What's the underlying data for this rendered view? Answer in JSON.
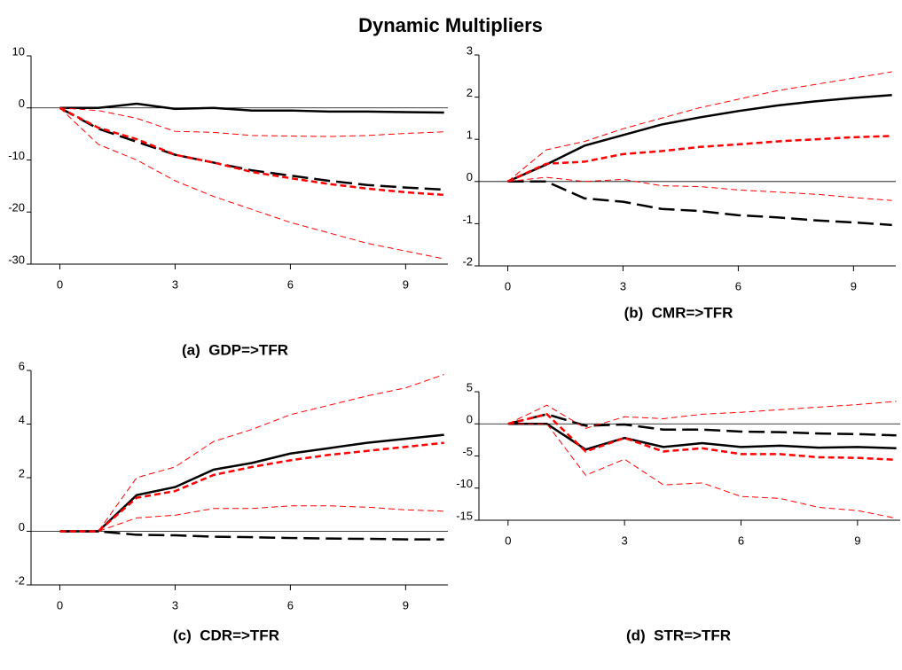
{
  "title": "Dynamic Multipliers",
  "chart_data": [
    {
      "type": "line",
      "subtitle": "(a)  GDP=>TFR",
      "x": [
        0,
        1,
        2,
        3,
        4,
        5,
        6,
        7,
        8,
        9,
        10
      ],
      "xlim": [
        -0.75,
        10.1
      ],
      "xticks": [
        0,
        3,
        6,
        9
      ],
      "ylim": [
        -30,
        10
      ],
      "yticks": [
        -30,
        -20,
        -10,
        0,
        10
      ],
      "zero_line": true,
      "series": [
        {
          "color": "#000000",
          "dash": "solid",
          "width": 2.5,
          "values": [
            0,
            0,
            0.8,
            -0.2,
            0,
            -0.5,
            -0.5,
            -0.7,
            -0.7,
            -0.8,
            -0.9
          ]
        },
        {
          "color": "#000000",
          "dash": "long-dash",
          "width": 2.5,
          "values": [
            0,
            -4,
            -6.5,
            -9,
            -10.5,
            -12,
            -13,
            -14,
            -14.8,
            -15.3,
            -15.7
          ]
        },
        {
          "color": "#ff0000",
          "dash": "dash",
          "width": 2.5,
          "values": [
            0,
            -3.8,
            -6,
            -9,
            -10.5,
            -12.3,
            -13.5,
            -14.6,
            -15.5,
            -16.2,
            -16.7
          ]
        },
        {
          "color": "#ff0000",
          "dash": "dash",
          "width": 1,
          "values": [
            0,
            -0.5,
            -2,
            -4.5,
            -4.7,
            -5.3,
            -5.4,
            -5.5,
            -5.3,
            -4.9,
            -4.6
          ]
        },
        {
          "color": "#ff0000",
          "dash": "dash",
          "width": 1,
          "values": [
            0,
            -7,
            -10,
            -14,
            -17,
            -19.5,
            -22,
            -24,
            -26,
            -27.5,
            -29
          ]
        }
      ]
    },
    {
      "type": "line",
      "subtitle": "(b)  CMR=>TFR",
      "x": [
        0,
        1,
        2,
        3,
        4,
        5,
        6,
        7,
        8,
        9,
        10
      ],
      "xlim": [
        -0.75,
        10.1
      ],
      "xticks": [
        0,
        3,
        6,
        9
      ],
      "ylim": [
        -2,
        3
      ],
      "yticks": [
        -2,
        -1,
        0,
        1,
        2,
        3
      ],
      "zero_line": true,
      "series": [
        {
          "color": "#000000",
          "dash": "solid",
          "width": 2.5,
          "values": [
            0,
            0.4,
            0.85,
            1.1,
            1.35,
            1.52,
            1.67,
            1.8,
            1.9,
            1.98,
            2.05
          ]
        },
        {
          "color": "#000000",
          "dash": "long-dash",
          "width": 2.5,
          "values": [
            0,
            0,
            -0.4,
            -0.48,
            -0.65,
            -0.7,
            -0.8,
            -0.85,
            -0.92,
            -0.97,
            -1.03
          ]
        },
        {
          "color": "#ff0000",
          "dash": "dash",
          "width": 2.5,
          "values": [
            0,
            0.42,
            0.47,
            0.65,
            0.72,
            0.82,
            0.88,
            0.95,
            1.0,
            1.05,
            1.08
          ]
        },
        {
          "color": "#ff0000",
          "dash": "dash",
          "width": 1,
          "values": [
            0,
            0.75,
            0.95,
            1.25,
            1.5,
            1.75,
            1.95,
            2.15,
            2.3,
            2.45,
            2.6
          ]
        },
        {
          "color": "#ff0000",
          "dash": "dash",
          "width": 1,
          "values": [
            0,
            0.1,
            0,
            0.05,
            -0.1,
            -0.12,
            -0.2,
            -0.25,
            -0.3,
            -0.38,
            -0.45
          ]
        }
      ]
    },
    {
      "type": "line",
      "subtitle": "(c)  CDR=>TFR",
      "x": [
        0,
        1,
        2,
        3,
        4,
        5,
        6,
        7,
        8,
        9,
        10
      ],
      "xlim": [
        -0.75,
        10.1
      ],
      "xticks": [
        0,
        3,
        6,
        9
      ],
      "ylim": [
        -2,
        6
      ],
      "yticks": [
        -2,
        0,
        2,
        4,
        6
      ],
      "zero_line": true,
      "series": [
        {
          "color": "#000000",
          "dash": "solid",
          "width": 2.5,
          "values": [
            0,
            0,
            1.35,
            1.65,
            2.3,
            2.55,
            2.9,
            3.1,
            3.3,
            3.45,
            3.6
          ]
        },
        {
          "color": "#000000",
          "dash": "long-dash",
          "width": 2.5,
          "values": [
            0,
            0,
            -0.13,
            -0.15,
            -0.2,
            -0.22,
            -0.25,
            -0.27,
            -0.28,
            -0.3,
            -0.3
          ]
        },
        {
          "color": "#ff0000",
          "dash": "dash",
          "width": 2.5,
          "values": [
            0,
            0,
            1.25,
            1.5,
            2.1,
            2.4,
            2.65,
            2.85,
            3.0,
            3.15,
            3.3
          ]
        },
        {
          "color": "#ff0000",
          "dash": "dash",
          "width": 1,
          "values": [
            0,
            0,
            2.0,
            2.4,
            3.35,
            3.8,
            4.35,
            4.7,
            5.05,
            5.35,
            5.85
          ]
        },
        {
          "color": "#ff0000",
          "dash": "dash",
          "width": 1,
          "values": [
            0,
            0,
            0.5,
            0.6,
            0.85,
            0.85,
            0.95,
            0.95,
            0.9,
            0.8,
            0.75
          ]
        }
      ]
    },
    {
      "type": "line",
      "subtitle": "(d)  STR=>TFR",
      "x": [
        0,
        1,
        2,
        3,
        4,
        5,
        6,
        7,
        8,
        9,
        10
      ],
      "xlim": [
        -0.75,
        10.1
      ],
      "xticks": [
        0,
        3,
        6,
        9
      ],
      "ylim": [
        -15,
        5
      ],
      "yticks": [
        -15,
        -10,
        -5,
        0,
        5
      ],
      "zero_line": true,
      "series": [
        {
          "color": "#000000",
          "dash": "solid",
          "width": 2.5,
          "values": [
            0,
            0,
            -4,
            -2.2,
            -3.6,
            -3,
            -3.6,
            -3.4,
            -3.7,
            -3.6,
            -3.8
          ]
        },
        {
          "color": "#000000",
          "dash": "long-dash",
          "width": 2.5,
          "values": [
            0,
            1.5,
            -0.3,
            -0.1,
            -0.9,
            -0.9,
            -1.2,
            -1.3,
            -1.5,
            -1.6,
            -1.8
          ]
        },
        {
          "color": "#ff0000",
          "dash": "dash",
          "width": 2.5,
          "values": [
            0,
            1.5,
            -4.3,
            -2.2,
            -4.3,
            -3.8,
            -4.7,
            -4.7,
            -5.2,
            -5.3,
            -5.6
          ]
        },
        {
          "color": "#ff0000",
          "dash": "dash",
          "width": 1,
          "values": [
            0,
            2.9,
            -0.7,
            1.1,
            0.8,
            1.5,
            1.8,
            2.2,
            2.6,
            3.0,
            3.5
          ]
        },
        {
          "color": "#ff0000",
          "dash": "dash",
          "width": 1,
          "values": [
            0,
            0,
            -8,
            -5.5,
            -9.5,
            -9.2,
            -11.3,
            -11.6,
            -13,
            -13.5,
            -14.7
          ]
        }
      ]
    }
  ]
}
